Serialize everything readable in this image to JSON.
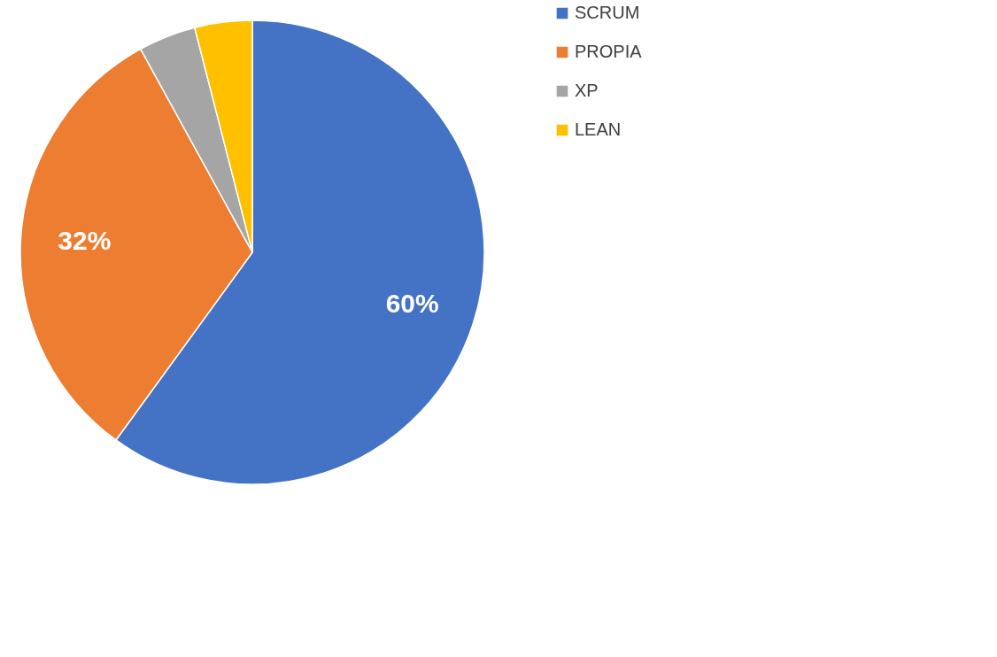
{
  "chart_data": {
    "type": "pie",
    "categories": [
      "SCRUM",
      "PROPIA",
      "XP",
      "LEAN"
    ],
    "values": [
      60,
      32,
      4,
      4
    ],
    "colors": [
      "#4472c4",
      "#ed7d31",
      "#a5a5a5",
      "#ffc000"
    ],
    "value_labels": [
      "60%",
      "32%",
      null,
      null
    ],
    "legend": "right"
  }
}
